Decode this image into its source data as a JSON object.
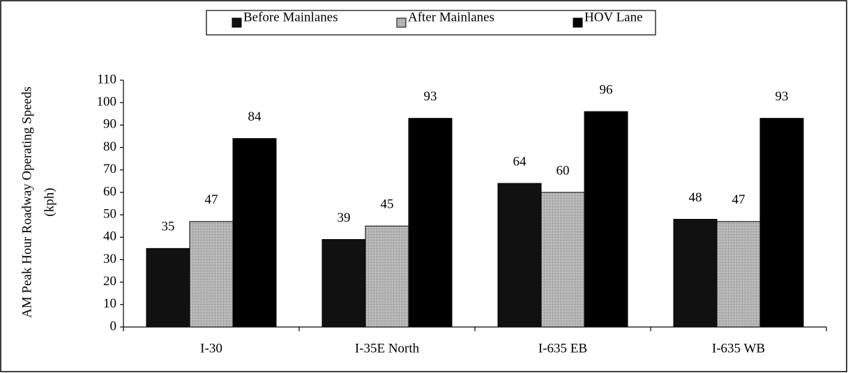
{
  "chart_data": {
    "type": "bar",
    "y_label": [
      "AM Peak Hour Roadway Operating Speeds",
      "(kph)"
    ],
    "categories": [
      "I-30",
      "I-35E North",
      "I-635 EB",
      "I-635 WB"
    ],
    "series": [
      {
        "name": "Before Mainlanes",
        "color": "#111111",
        "values": [
          35,
          39,
          64,
          48
        ]
      },
      {
        "name": "After Mainlanes",
        "color": "#b4b4b4",
        "values": [
          47,
          45,
          60,
          47
        ]
      },
      {
        "name": "HOV Lane",
        "color": "#000000",
        "values": [
          84,
          93,
          96,
          93
        ]
      }
    ],
    "ylim": [
      0,
      110
    ],
    "yticks": [
      0,
      10,
      20,
      30,
      40,
      50,
      60,
      70,
      80,
      90,
      100,
      110
    ],
    "legend": "top"
  }
}
